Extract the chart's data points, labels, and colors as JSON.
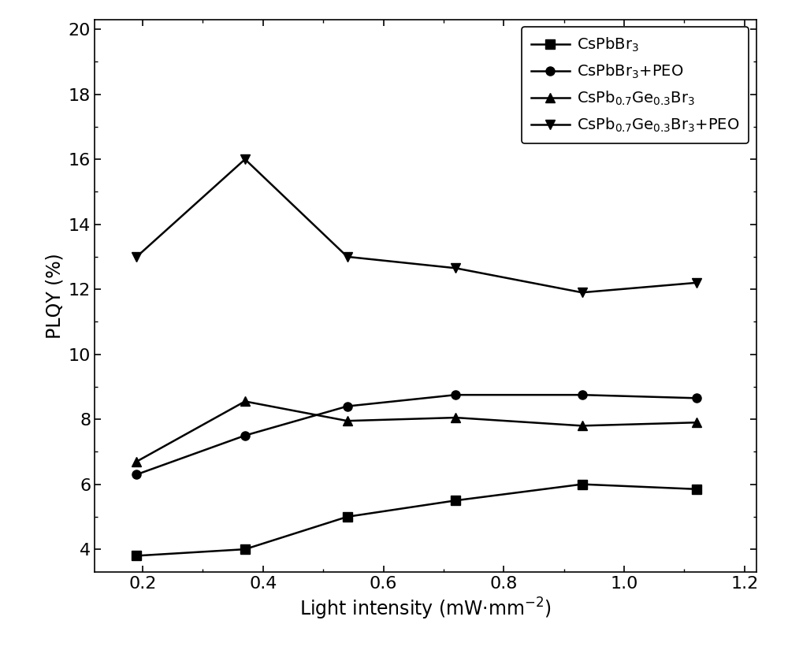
{
  "x": [
    0.19,
    0.37,
    0.54,
    0.72,
    0.93,
    1.12
  ],
  "series": [
    {
      "label": "CsPbBr$_3$",
      "y": [
        3.8,
        4.0,
        5.0,
        5.5,
        6.0,
        5.85
      ],
      "marker": "s",
      "color": "#000000"
    },
    {
      "label": "CsPbBr$_3$+PEO",
      "y": [
        6.3,
        7.5,
        8.4,
        8.75,
        8.75,
        8.65
      ],
      "marker": "o",
      "color": "#000000"
    },
    {
      "label": "CsPb$_{0.7}$Ge$_{0.3}$Br$_3$",
      "y": [
        6.7,
        8.55,
        7.95,
        8.05,
        7.8,
        7.9
      ],
      "marker": "^",
      "color": "#000000"
    },
    {
      "label": "CsPb$_{0.7}$Ge$_{0.3}$Br$_3$+PEO",
      "y": [
        13.0,
        16.0,
        13.0,
        12.65,
        11.9,
        12.2
      ],
      "marker": "v",
      "color": "#000000"
    }
  ],
  "xlabel": "Light intensity (mW·mm$^{-2}$)",
  "ylabel": "PLQY (%)",
  "xlim": [
    0.12,
    1.22
  ],
  "ylim": [
    3.3,
    20.3
  ],
  "xticks": [
    0.2,
    0.4,
    0.6,
    0.8,
    1.0,
    1.2
  ],
  "yticks": [
    4,
    6,
    8,
    10,
    12,
    14,
    16,
    18,
    20
  ],
  "background_color": "#ffffff",
  "linewidth": 1.8,
  "markersize": 8,
  "legend_loc": "upper right",
  "legend_fontsize": 14,
  "axis_fontsize": 17,
  "tick_fontsize": 16,
  "fig_width": 10.0,
  "fig_height": 8.25,
  "dpi": 100
}
